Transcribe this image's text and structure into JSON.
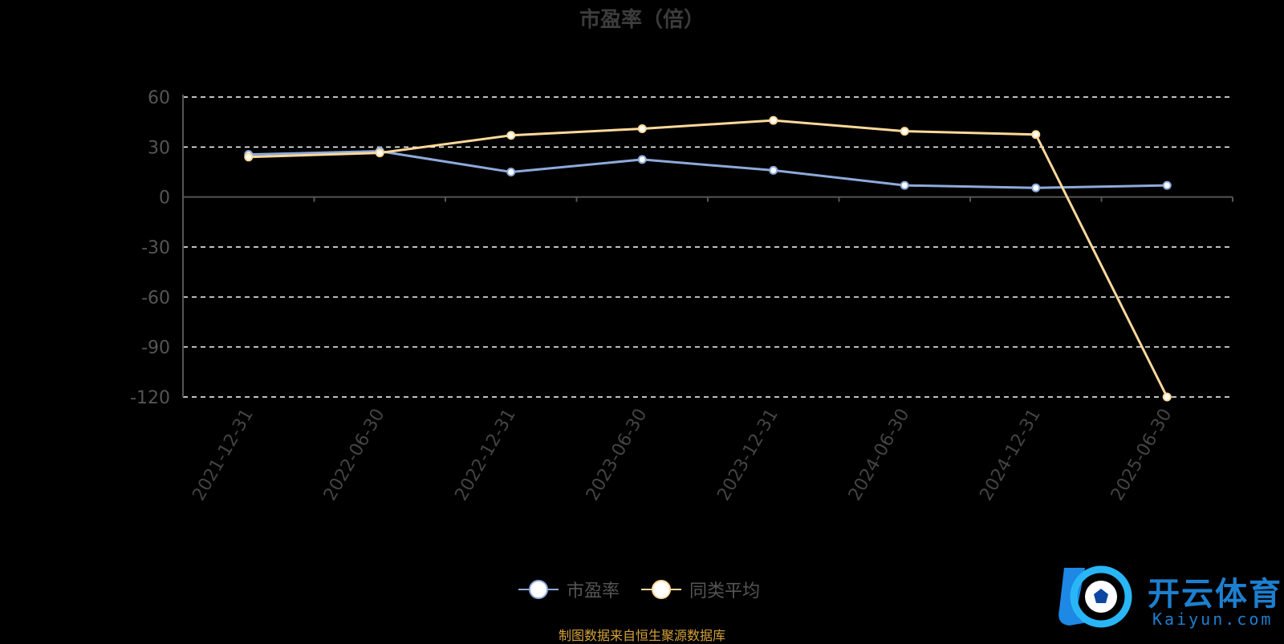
{
  "title": "市盈率（倍）",
  "source_note": "制图数据来自恒生聚源数据库",
  "logo": {
    "text": "开云体育",
    "sub": "Kaiyun.com"
  },
  "colors": {
    "series_pe": "#8eaadb",
    "series_avg": "#ffd99a",
    "background": "#000000",
    "grid": "#ffffff"
  },
  "chart_data": {
    "type": "line",
    "title": "市盈率（倍）",
    "ylabel": "",
    "xlabel": "",
    "ylim": [
      -120,
      60
    ],
    "yticks": [
      60,
      30,
      0,
      -30,
      -60,
      -90,
      -120
    ],
    "x": [
      "2021-12-31",
      "2022-06-30",
      "2022-12-31",
      "2023-06-30",
      "2023-12-31",
      "2024-06-30",
      "2024-12-31",
      "2025-06-30"
    ],
    "series": [
      {
        "name": "市盈率",
        "values": [
          25.5,
          27.5,
          15,
          22.5,
          16,
          7,
          5.5,
          7
        ]
      },
      {
        "name": "同类平均",
        "values": [
          24,
          26.5,
          37,
          41,
          46,
          39.5,
          37.5,
          -120
        ]
      }
    ],
    "grid": true,
    "grid_style": "dashed",
    "legend_position": "bottom-center"
  }
}
